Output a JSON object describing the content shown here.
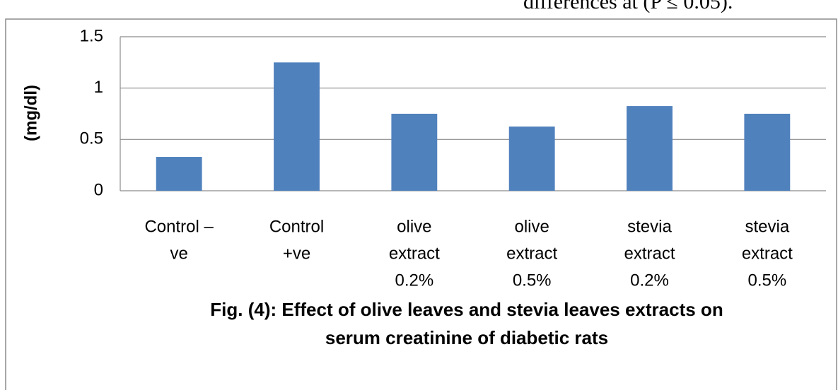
{
  "chart_data": {
    "type": "bar",
    "annotation": "differences at (P ≤ 0.05).",
    "title": [
      "Fig. (4): Effect of olive leaves and stevia leaves extracts on",
      "serum creatinine of diabetic rats"
    ],
    "y_label": "(mg/dl)",
    "categories": [
      [
        "Control –",
        "ve"
      ],
      [
        "Control",
        "+ve"
      ],
      [
        "olive",
        "extract",
        "0.2%"
      ],
      [
        "olive",
        "extract",
        "0.5%"
      ],
      [
        "stevia",
        "extract",
        "0.2%"
      ],
      [
        "stevia",
        "extract",
        "0.5%"
      ]
    ],
    "values": [
      0.33,
      1.25,
      0.75,
      0.625,
      0.825,
      0.75
    ],
    "color": "#4f81bd",
    "ylim": [
      0,
      1.5
    ],
    "yticks": [
      0,
      0.5,
      1,
      1.5
    ],
    "grid": true
  }
}
